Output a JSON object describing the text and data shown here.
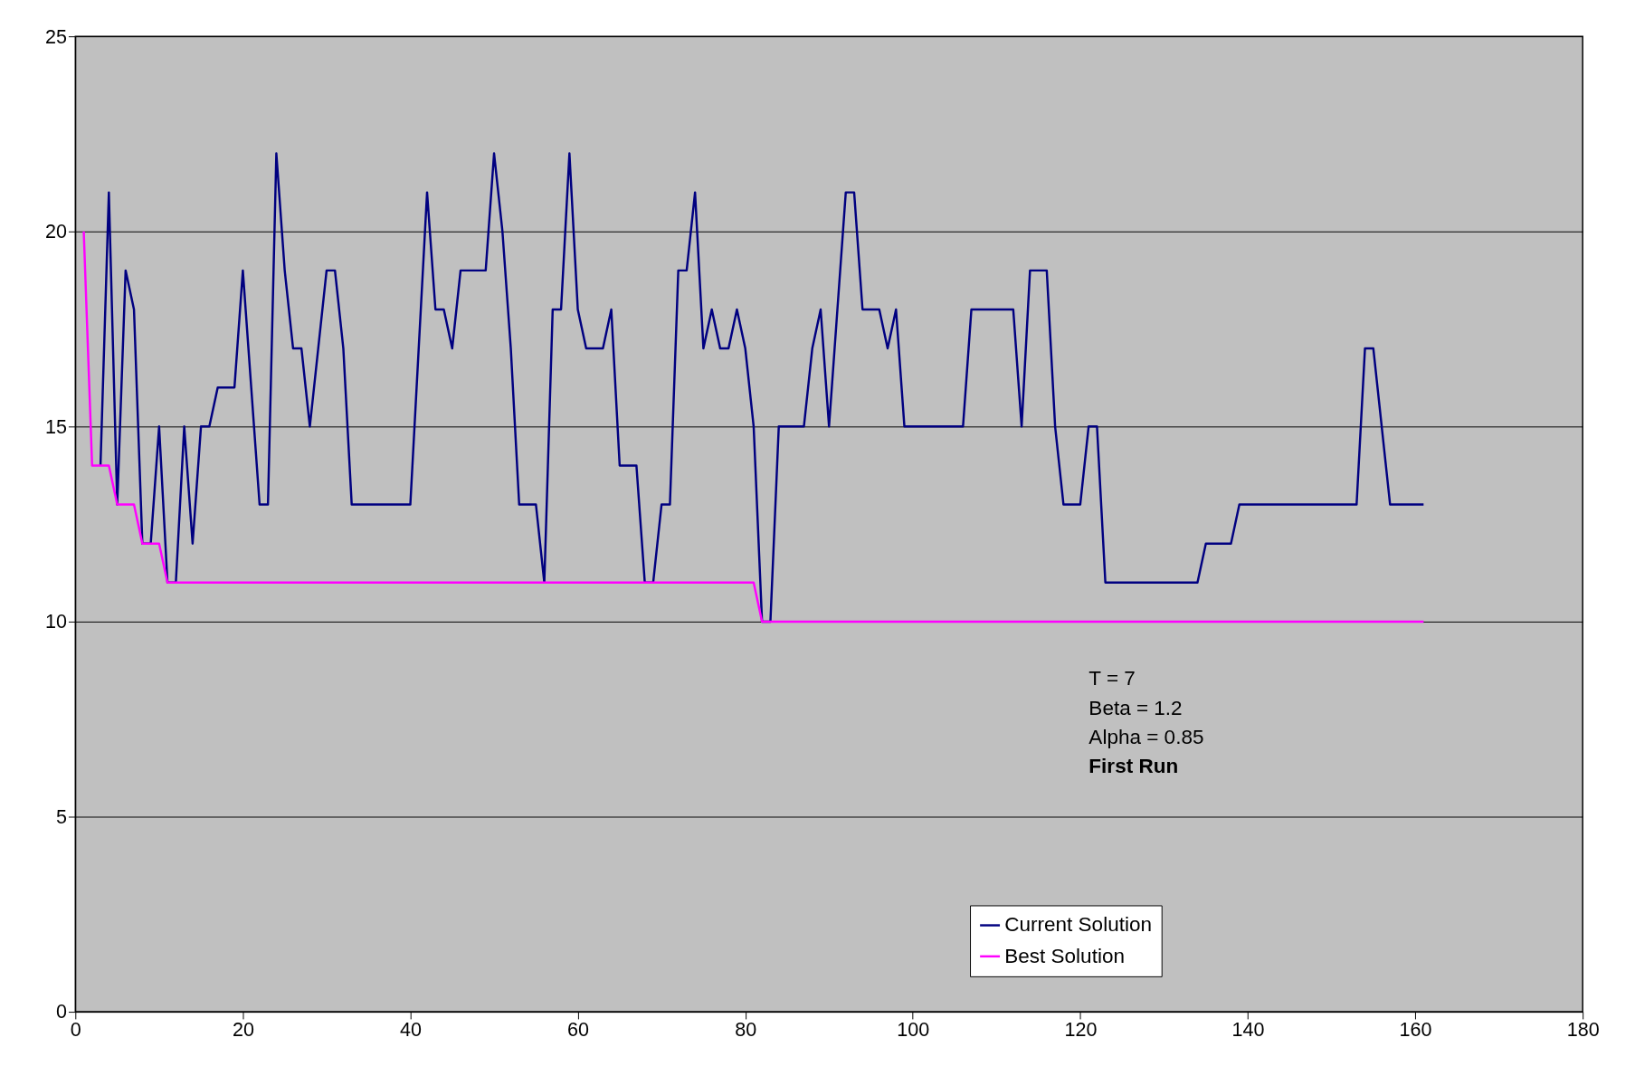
{
  "chart_data": {
    "type": "line",
    "x": [
      1,
      2,
      3,
      4,
      5,
      6,
      7,
      8,
      9,
      10,
      11,
      12,
      13,
      14,
      15,
      16,
      17,
      18,
      19,
      20,
      21,
      22,
      23,
      24,
      25,
      26,
      27,
      28,
      29,
      30,
      31,
      32,
      33,
      34,
      35,
      36,
      37,
      38,
      39,
      40,
      41,
      42,
      43,
      44,
      45,
      46,
      47,
      48,
      49,
      50,
      51,
      52,
      53,
      54,
      55,
      56,
      57,
      58,
      59,
      60,
      61,
      62,
      63,
      64,
      65,
      66,
      67,
      68,
      69,
      70,
      71,
      72,
      73,
      74,
      75,
      76,
      77,
      78,
      79,
      80,
      81,
      82,
      83,
      84,
      85,
      86,
      87,
      88,
      89,
      90,
      91,
      92,
      93,
      94,
      95,
      96,
      97,
      98,
      99,
      100,
      101,
      102,
      103,
      104,
      105,
      106,
      107,
      108,
      109,
      110,
      111,
      112,
      113,
      114,
      115,
      116,
      117,
      118,
      119,
      120,
      121,
      122,
      123,
      124,
      125,
      126,
      127,
      128,
      129,
      130,
      131,
      132,
      133,
      134,
      135,
      136,
      137,
      138,
      139,
      140,
      141,
      142,
      143,
      144,
      145,
      146,
      147,
      148,
      149,
      150,
      151,
      152,
      153,
      154,
      155,
      156,
      157,
      158,
      159,
      160,
      161
    ],
    "series": [
      {
        "name": "Current Solution",
        "color": "#000080",
        "values": [
          null,
          null,
          14,
          21,
          13,
          19,
          18,
          12,
          12,
          15,
          11,
          11,
          15,
          12,
          15,
          15,
          16,
          16,
          16,
          19,
          16,
          13,
          13,
          22,
          19,
          17,
          17,
          15,
          17,
          19,
          19,
          17,
          13,
          13,
          13,
          13,
          13,
          13,
          13,
          13,
          17,
          21,
          18,
          18,
          17,
          19,
          19,
          19,
          19,
          22,
          20,
          17,
          13,
          13,
          13,
          11,
          18,
          18,
          22,
          18,
          17,
          17,
          17,
          18,
          14,
          14,
          14,
          11,
          11,
          13,
          13,
          19,
          19,
          21,
          17,
          18,
          17,
          17,
          18,
          17,
          15,
          10,
          10,
          15,
          15,
          15,
          15,
          17,
          18,
          15,
          18,
          21,
          21,
          18,
          18,
          18,
          17,
          18,
          15,
          15,
          15,
          15,
          15,
          15,
          15,
          15,
          18,
          18,
          18,
          18,
          18,
          18,
          15,
          19,
          19,
          19,
          15,
          13,
          13,
          13,
          15,
          15,
          11,
          11,
          11,
          11,
          11,
          11,
          11,
          11,
          11,
          11,
          11,
          11,
          12,
          12,
          12,
          12,
          13,
          13,
          13,
          13,
          13,
          13,
          13,
          13,
          13,
          13,
          13,
          13,
          13,
          13,
          13,
          17,
          17,
          15,
          13,
          13,
          13,
          13,
          13
        ]
      },
      {
        "name": "Best Solution",
        "color": "#ff00ff",
        "values": [
          20,
          14,
          14,
          14,
          13,
          13,
          13,
          12,
          12,
          12,
          11,
          11,
          11,
          11,
          11,
          11,
          11,
          11,
          11,
          11,
          11,
          11,
          11,
          11,
          11,
          11,
          11,
          11,
          11,
          11,
          11,
          11,
          11,
          11,
          11,
          11,
          11,
          11,
          11,
          11,
          11,
          11,
          11,
          11,
          11,
          11,
          11,
          11,
          11,
          11,
          11,
          11,
          11,
          11,
          11,
          11,
          11,
          11,
          11,
          11,
          11,
          11,
          11,
          11,
          11,
          11,
          11,
          11,
          11,
          11,
          11,
          11,
          11,
          11,
          11,
          11,
          11,
          11,
          11,
          11,
          11,
          10,
          10,
          10,
          10,
          10,
          10,
          10,
          10,
          10,
          10,
          10,
          10,
          10,
          10,
          10,
          10,
          10,
          10,
          10,
          10,
          10,
          10,
          10,
          10,
          10,
          10,
          10,
          10,
          10,
          10,
          10,
          10,
          10,
          10,
          10,
          10,
          10,
          10,
          10,
          10,
          10,
          10,
          10,
          10,
          10,
          10,
          10,
          10,
          10,
          10,
          10,
          10,
          10,
          10,
          10,
          10,
          10,
          10,
          10,
          10,
          10,
          10,
          10,
          10,
          10,
          10,
          10,
          10,
          10,
          10,
          10,
          10,
          10,
          10,
          10,
          10,
          10,
          10,
          10,
          10
        ]
      }
    ],
    "xlim": [
      0,
      180
    ],
    "xticks": [
      0,
      20,
      40,
      60,
      80,
      100,
      120,
      140,
      160,
      180
    ],
    "ylim": [
      0,
      25
    ],
    "yticks": [
      0,
      5,
      10,
      15,
      20,
      25
    ],
    "grid": "y",
    "legend": "bottom",
    "marker": "none",
    "line_style": "solid",
    "annotations": [
      "T = 7",
      "Beta = 1.2",
      "Alpha = 0.85",
      "First Run"
    ]
  }
}
